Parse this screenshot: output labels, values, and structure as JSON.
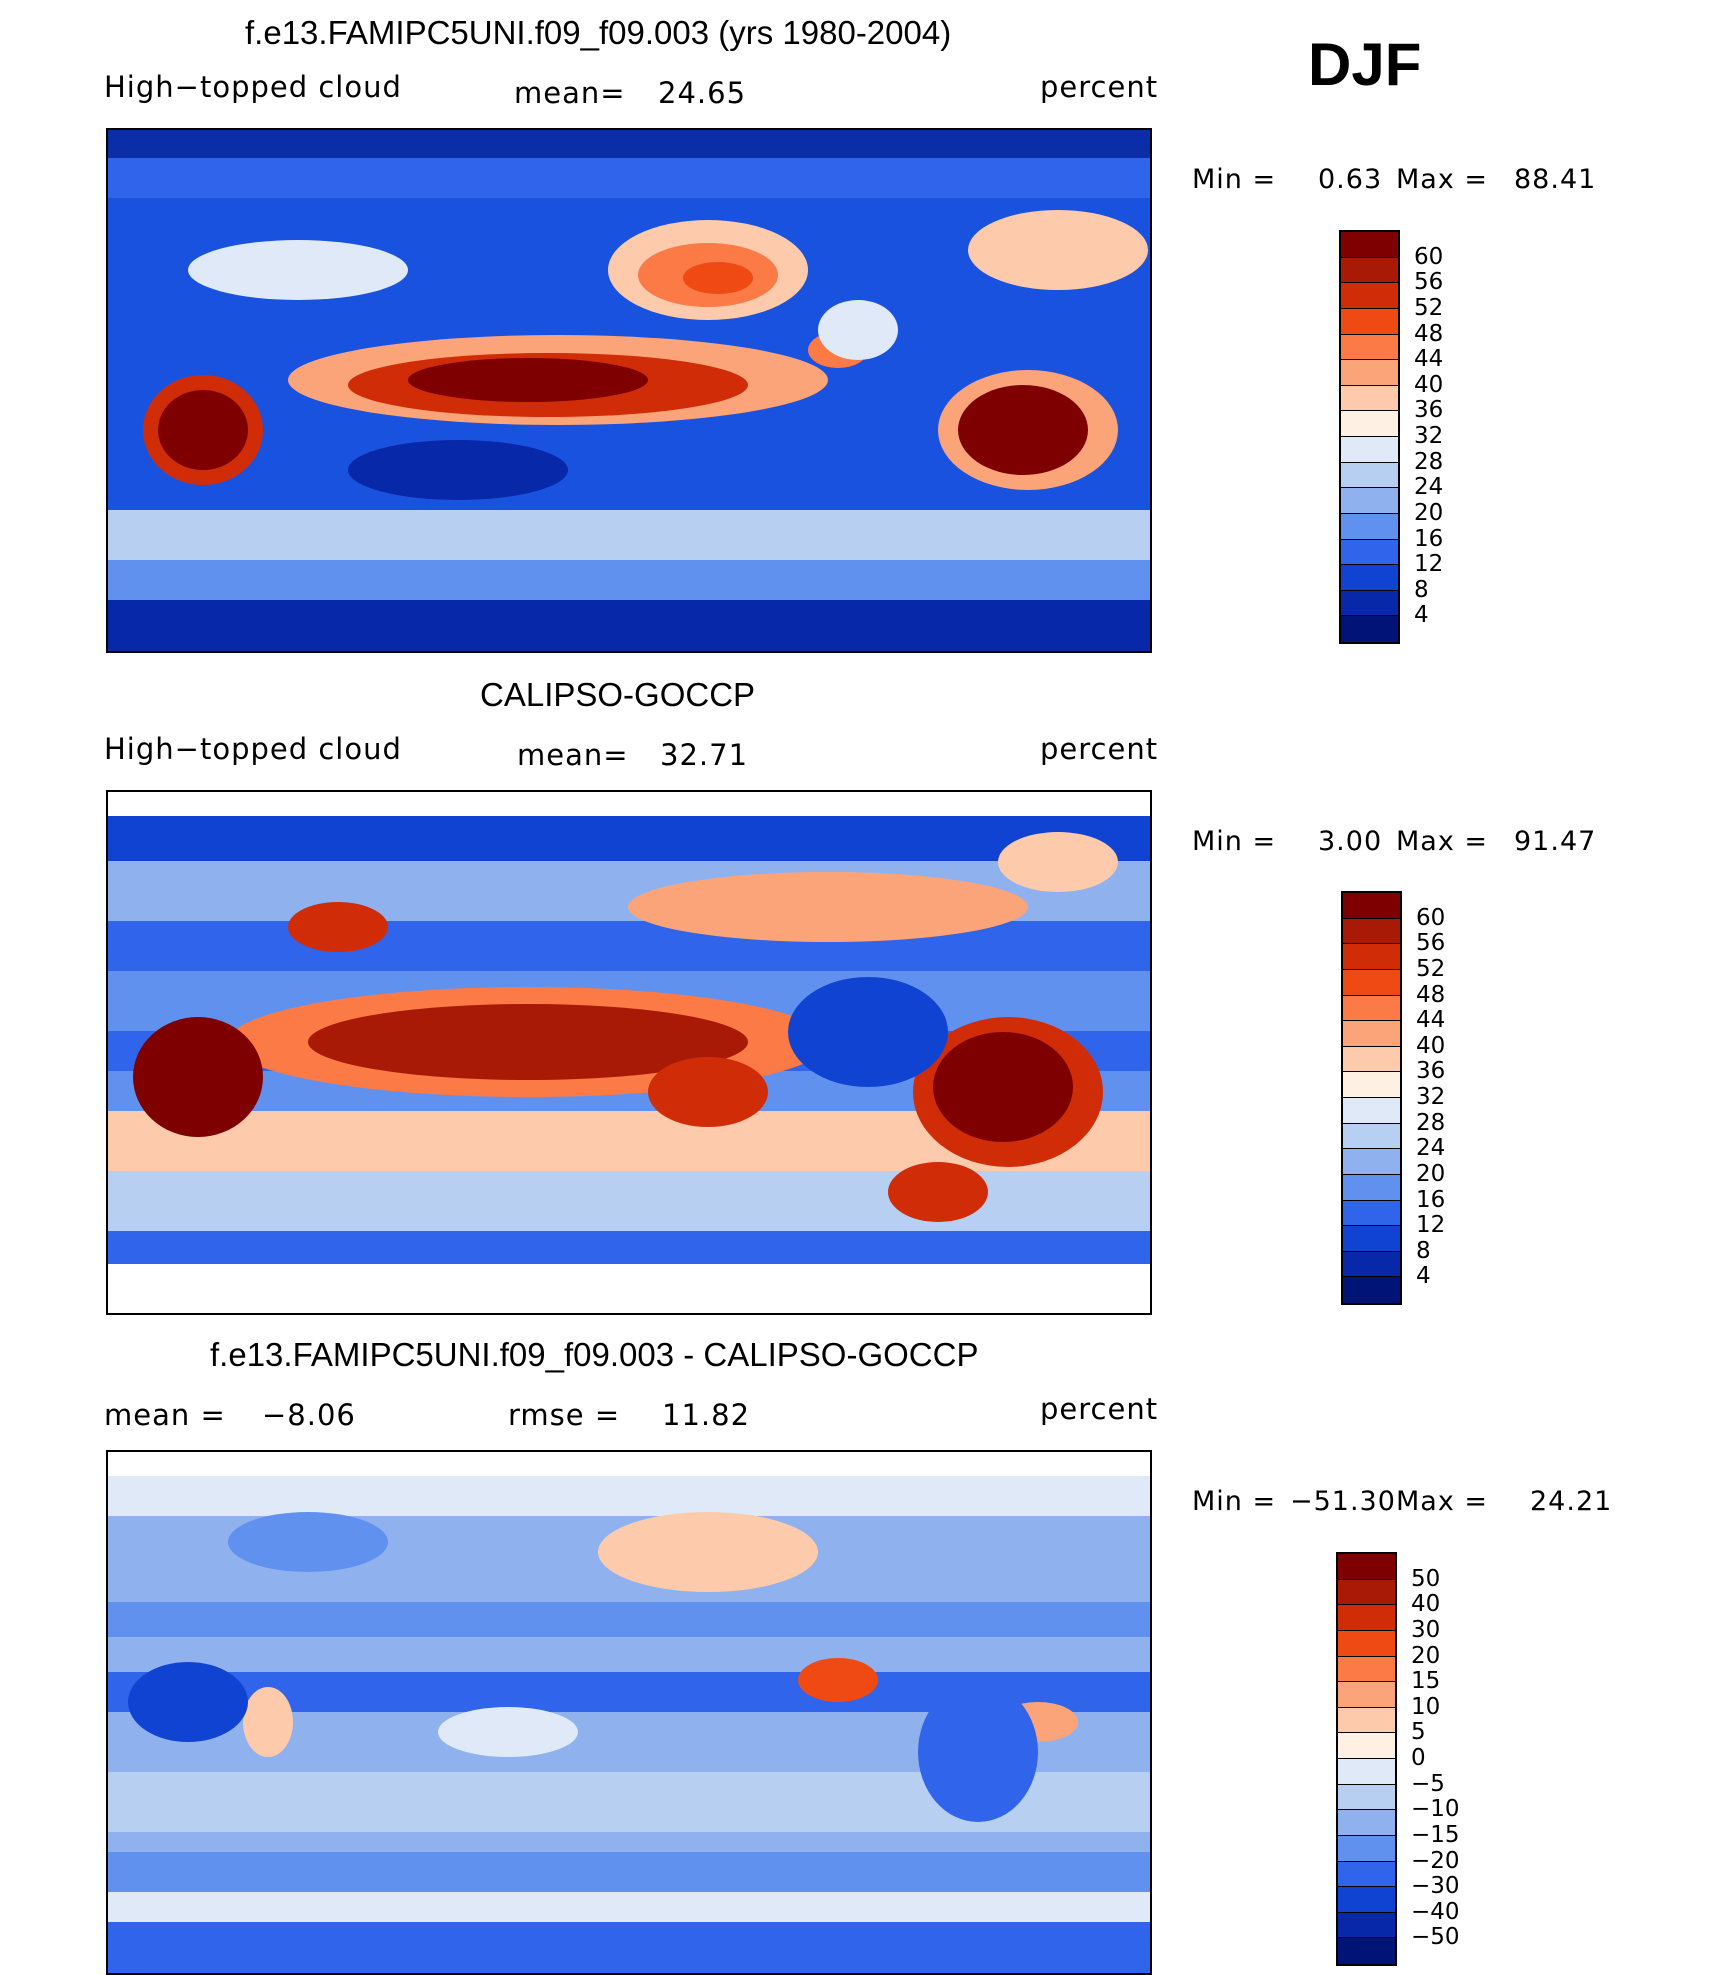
{
  "season": "DJF",
  "units": "percent",
  "panels": [
    {
      "title": "f.e13.FAMIPC5UNI.f09_f09.003 (yrs 1980-2004)",
      "variable": "High−topped cloud",
      "stat1_label": "mean=",
      "stat1_value": "24.65",
      "stat2_label": "",
      "stat2_value": "",
      "units": "percent",
      "min_label": "Min =",
      "min_value": "0.63",
      "max_label": "Max =",
      "max_value": "88.41",
      "ticks": [
        "60",
        "56",
        "52",
        "48",
        "44",
        "40",
        "36",
        "32",
        "28",
        "24",
        "20",
        "16",
        "12",
        "8",
        "4"
      ],
      "colors": [
        "#7f0000",
        "#a81a05",
        "#d02c08",
        "#f04a14",
        "#fb7a45",
        "#fca479",
        "#fdcbac",
        "#fff0e4",
        "#dfe9f8",
        "#b7cff1",
        "#8fb2ef",
        "#6191ef",
        "#3064ea",
        "#1043d2",
        "#0728a8",
        "#001478"
      ]
    },
    {
      "title": "CALIPSO-GOCCP",
      "variable": "High−topped cloud",
      "stat1_label": "mean=",
      "stat1_value": "32.71",
      "stat2_label": "",
      "stat2_value": "",
      "units": "percent",
      "min_label": "Min =",
      "min_value": "3.00",
      "max_label": "Max =",
      "max_value": "91.47",
      "ticks": [
        "60",
        "56",
        "52",
        "48",
        "44",
        "40",
        "36",
        "32",
        "28",
        "24",
        "20",
        "16",
        "12",
        "8",
        "4"
      ],
      "colors": [
        "#7f0000",
        "#a81a05",
        "#d02c08",
        "#f04a14",
        "#fb7a45",
        "#fca479",
        "#fdcbac",
        "#fff0e4",
        "#dfe9f8",
        "#b7cff1",
        "#8fb2ef",
        "#6191ef",
        "#3064ea",
        "#1043d2",
        "#0728a8",
        "#001478"
      ]
    },
    {
      "title": "f.e13.FAMIPC5UNI.f09_f09.003 - CALIPSO-GOCCP",
      "variable": "",
      "stat1_label": "mean =",
      "stat1_value": "−8.06",
      "stat2_label": "rmse =",
      "stat2_value": "11.82",
      "units": "percent",
      "min_label": "Min =",
      "min_value": "−51.30",
      "max_label": "Max =",
      "max_value": "24.21",
      "ticks": [
        "50",
        "40",
        "30",
        "20",
        "15",
        "10",
        "5",
        "0",
        "−5",
        "−10",
        "−15",
        "−20",
        "−30",
        "−40",
        "−50"
      ],
      "colors": [
        "#7f0000",
        "#a81a05",
        "#d02c08",
        "#f04a14",
        "#fb7a45",
        "#fca479",
        "#fdcbac",
        "#fff0e4",
        "#dfe9f8",
        "#b7cff1",
        "#8fb2ef",
        "#6191ef",
        "#3064ea",
        "#1043d2",
        "#0728a8",
        "#001478"
      ]
    }
  ]
}
